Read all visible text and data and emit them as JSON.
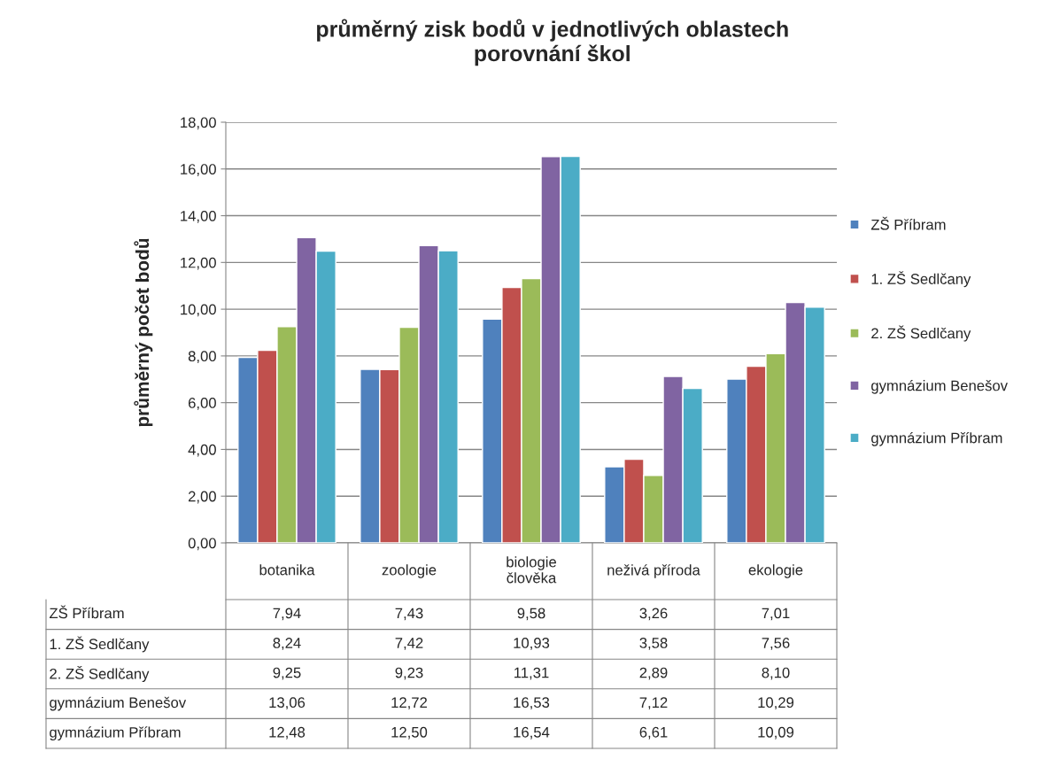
{
  "chart_data": {
    "type": "bar",
    "title": "průměrný zisk bodů v jednotlivých oblastech\nporovnání škol",
    "ylabel": "průměrný počet bodů",
    "categories": [
      "botanika",
      "zoologie",
      "biologie člověka",
      "neživá příroda",
      "ekologie"
    ],
    "series": [
      {
        "name": "ZŠ Příbram",
        "color": "#4f81bd",
        "values": [
          7.94,
          7.43,
          9.58,
          3.26,
          7.01
        ],
        "value_labels": [
          "7,94",
          "7,43",
          "9,58",
          "3,26",
          "7,01"
        ]
      },
      {
        "name": "1. ZŠ Sedlčany",
        "color": "#c0504d",
        "values": [
          8.24,
          7.42,
          10.93,
          3.58,
          7.56
        ],
        "value_labels": [
          "8,24",
          "7,42",
          "10,93",
          "3,58",
          "7,56"
        ]
      },
      {
        "name": "2. ZŠ Sedlčany",
        "color": "#9bbb59",
        "values": [
          9.25,
          9.23,
          11.31,
          2.89,
          8.1
        ],
        "value_labels": [
          "9,25",
          "9,23",
          "11,31",
          "2,89",
          "8,10"
        ]
      },
      {
        "name": "gymnázium Benešov",
        "color": "#8064a2",
        "values": [
          13.06,
          12.72,
          16.53,
          7.12,
          10.29
        ],
        "value_labels": [
          "13,06",
          "12,72",
          "16,53",
          "7,12",
          "10,29"
        ]
      },
      {
        "name": "gymnázium Příbram",
        "color": "#4bacc6",
        "values": [
          12.48,
          12.5,
          16.54,
          6.61,
          10.09
        ],
        "value_labels": [
          "12,48",
          "12,50",
          "16,54",
          "6,61",
          "10,09"
        ]
      }
    ],
    "ylim": [
      0,
      18
    ],
    "yticks": [
      {
        "value": 0,
        "label": "0,00"
      },
      {
        "value": 2,
        "label": "2,00"
      },
      {
        "value": 4,
        "label": "4,00"
      },
      {
        "value": 6,
        "label": "6,00"
      },
      {
        "value": 8,
        "label": "8,00"
      },
      {
        "value": 10,
        "label": "10,00"
      },
      {
        "value": 12,
        "label": "12,00"
      },
      {
        "value": 14,
        "label": "14,00"
      },
      {
        "value": 16,
        "label": "16,00"
      },
      {
        "value": 18,
        "label": "18,00"
      }
    ],
    "grid": "y",
    "legend": "right"
  }
}
